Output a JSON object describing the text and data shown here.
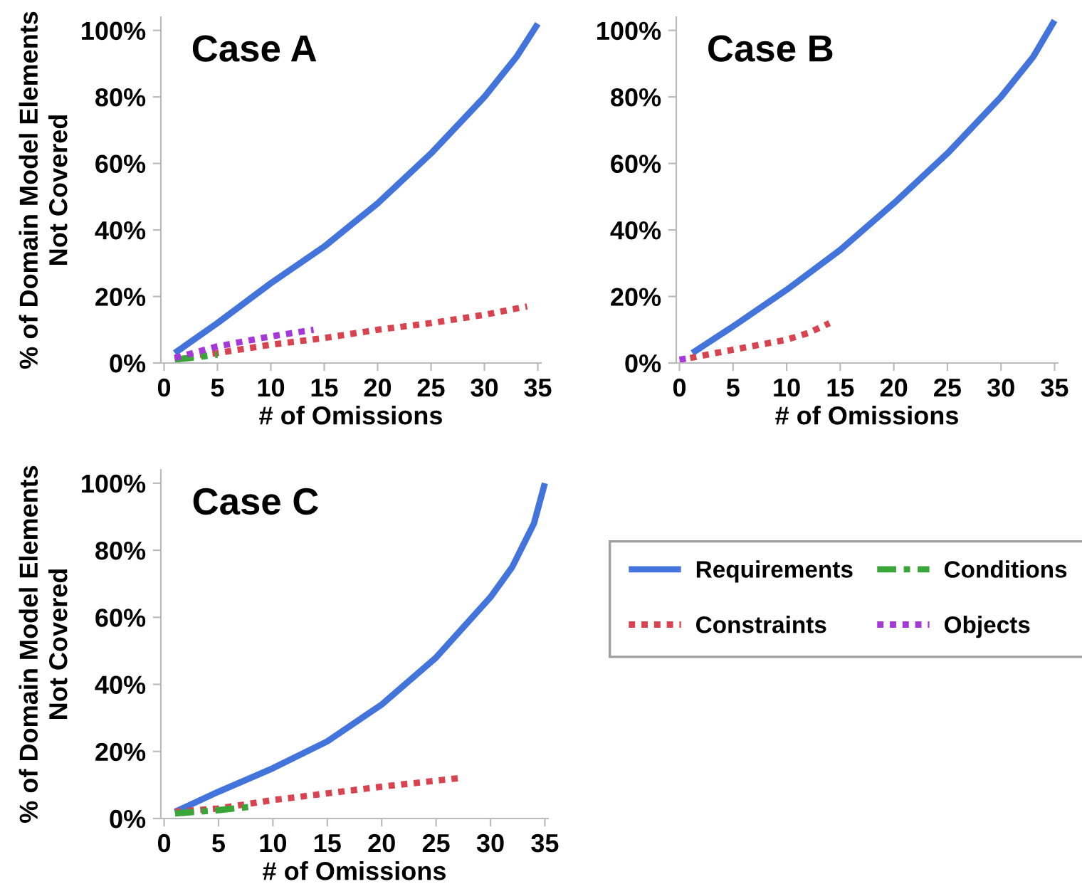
{
  "chart_data": [
    {
      "type": "line",
      "title": "Case A",
      "xlabel": "# of Omissions",
      "ylabel": "% of Domain Model Elements\nNot Covered",
      "xlim": [
        -0.3,
        35.3
      ],
      "xticks": [
        0,
        5,
        10,
        15,
        20,
        25,
        30,
        35
      ],
      "ylim": [
        0,
        104
      ],
      "yticks": [
        {
          "value": 0,
          "label": "0%"
        },
        {
          "value": 20,
          "label": "20%"
        },
        {
          "value": 40,
          "label": "40%"
        },
        {
          "value": 60,
          "label": "60%"
        },
        {
          "value": 80,
          "label": "80%"
        },
        {
          "value": 100,
          "label": "100%"
        }
      ],
      "grid": false,
      "legend": "right",
      "series": [
        {
          "name": "Requirements",
          "color": "#4374db",
          "line_style": "solid",
          "x": [
            1,
            5,
            10,
            15,
            20,
            25,
            30,
            33,
            35
          ],
          "values": [
            3,
            12,
            24,
            35,
            48,
            63,
            80,
            92,
            102
          ]
        },
        {
          "name": "Constraints",
          "color": "#d9434f",
          "line_style": "dotted",
          "x": [
            1,
            5,
            10,
            15,
            20,
            25,
            30,
            34
          ],
          "values": [
            1.5,
            3,
            5.5,
            7.5,
            10,
            12,
            14.5,
            17
          ]
        },
        {
          "name": "Conditions",
          "color": "#3aa63a",
          "line_style": "dashed",
          "x": [
            1,
            5
          ],
          "values": [
            1,
            2.5
          ]
        },
        {
          "name": "Objects",
          "color": "#a638d9",
          "line_style": "dotted",
          "x": [
            1,
            5,
            10,
            14
          ],
          "values": [
            1.5,
            5,
            8,
            10
          ]
        }
      ]
    },
    {
      "type": "line",
      "title": "Case B",
      "xlabel": "# of Omissions",
      "xlim": [
        -0.3,
        35.3
      ],
      "xticks": [
        0,
        5,
        10,
        15,
        20,
        25,
        30,
        35
      ],
      "ylim": [
        0,
        104
      ],
      "yticks": [
        {
          "value": 0,
          "label": "0%"
        },
        {
          "value": 20,
          "label": "20%"
        },
        {
          "value": 40,
          "label": "40%"
        },
        {
          "value": 60,
          "label": "60%"
        },
        {
          "value": 80,
          "label": "80%"
        },
        {
          "value": 100,
          "label": "100%"
        }
      ],
      "grid": false,
      "series": [
        {
          "color": "#4374db",
          "line_style": "solid",
          "x": [
            1.2,
            5,
            10,
            15,
            20,
            25,
            30,
            33,
            35
          ],
          "values": [
            3,
            11,
            22,
            34,
            48,
            63,
            80,
            92,
            103
          ]
        },
        {
          "color": "#d9434f",
          "line_style": "dotted",
          "x": [
            1,
            5,
            10,
            12,
            14
          ],
          "values": [
            1.5,
            4,
            7,
            9,
            12
          ]
        },
        {
          "color": "#a638d9",
          "line_style": "dotted",
          "x": [
            0,
            1
          ],
          "values": [
            1,
            1.5
          ]
        }
      ]
    },
    {
      "type": "line",
      "title": "Case C",
      "xlabel": "# of Omissions",
      "ylabel": "% of Domain Model Elements\nNot Covered",
      "xlim": [
        -0.3,
        35.3
      ],
      "xticks": [
        0,
        5,
        10,
        15,
        20,
        25,
        30,
        35
      ],
      "ylim": [
        0,
        104
      ],
      "yticks": [
        {
          "value": 0,
          "label": "0%"
        },
        {
          "value": 20,
          "label": "20%"
        },
        {
          "value": 40,
          "label": "40%"
        },
        {
          "value": 60,
          "label": "60%"
        },
        {
          "value": 80,
          "label": "80%"
        },
        {
          "value": 100,
          "label": "100%"
        }
      ],
      "grid": false,
      "series": [
        {
          "color": "#4374db",
          "line_style": "solid",
          "x": [
            1,
            5,
            10,
            15,
            20,
            25,
            30,
            32,
            34,
            35
          ],
          "values": [
            2,
            8,
            15,
            23,
            34,
            48,
            66,
            75,
            88,
            100
          ]
        },
        {
          "color": "#d9434f",
          "line_style": "dotted",
          "x": [
            1,
            5,
            10,
            15,
            20,
            27
          ],
          "values": [
            2,
            3,
            5.5,
            7.5,
            9.5,
            12
          ]
        },
        {
          "color": "#3aa63a",
          "line_style": "dashed",
          "x": [
            1,
            5,
            8
          ],
          "values": [
            1.5,
            2.5,
            3.5
          ]
        }
      ]
    }
  ]
}
